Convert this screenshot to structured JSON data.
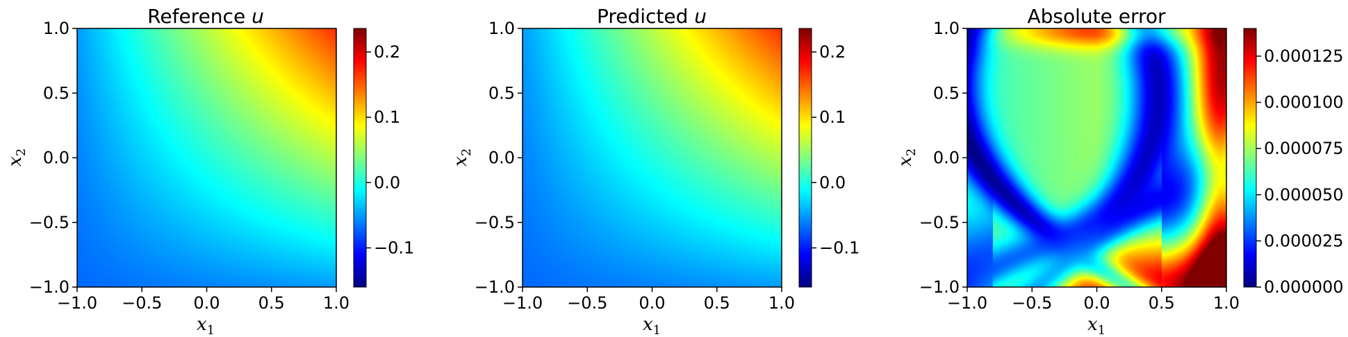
{
  "chart_data": [
    {
      "type": "heatmap",
      "title_text": "Reference ",
      "title_var": "u",
      "xlabel": "x1",
      "ylabel": "x2",
      "xlim": [
        -1.0,
        1.0
      ],
      "ylim": [
        -1.0,
        1.0
      ],
      "xticks": [
        "−1.0",
        "−0.5",
        "0.0",
        "0.5",
        "1.0"
      ],
      "yticks": [
        "−1.0",
        "−0.5",
        "0.0",
        "0.5",
        "1.0"
      ],
      "colormap": "jet",
      "field": "0.06*(x1+x2) + 0.05*x1*x2",
      "colorbar": {
        "range": [
          -0.16,
          0.236
        ],
        "ticks": [
          {
            "value": -0.1,
            "label": "−0.1"
          },
          {
            "value": 0.0,
            "label": "0.0"
          },
          {
            "value": 0.1,
            "label": "0.1"
          },
          {
            "value": 0.2,
            "label": "0.2"
          }
        ]
      }
    },
    {
      "type": "heatmap",
      "title_text": "Predicted ",
      "title_var": "u",
      "xlabel": "x1",
      "ylabel": "x2",
      "xlim": [
        -1.0,
        1.0
      ],
      "ylim": [
        -1.0,
        1.0
      ],
      "xticks": [
        "−1.0",
        "−0.5",
        "0.0",
        "0.5",
        "1.0"
      ],
      "yticks": [
        "−1.0",
        "−0.5",
        "0.0",
        "0.5",
        "1.0"
      ],
      "colormap": "jet",
      "field": "0.06*(x1+x2) + 0.05*x1*x2",
      "colorbar": {
        "range": [
          -0.16,
          0.236
        ],
        "ticks": [
          {
            "value": -0.1,
            "label": "−0.1"
          },
          {
            "value": 0.0,
            "label": "0.0"
          },
          {
            "value": 0.1,
            "label": "0.1"
          },
          {
            "value": 0.2,
            "label": "0.2"
          }
        ]
      }
    },
    {
      "type": "heatmap",
      "title_text": "Absolute error",
      "title_var": "",
      "xlabel": "x1",
      "ylabel": "x2",
      "xlim": [
        -1.0,
        1.0
      ],
      "ylim": [
        -1.0,
        1.0
      ],
      "xticks": [
        "−1.0",
        "−0.5",
        "0.0",
        "0.5",
        "1.0"
      ],
      "yticks": [
        "−1.0",
        "−0.5",
        "0.0",
        "0.5",
        "1.0"
      ],
      "colormap": "jet",
      "field": "abs(error)",
      "colorbar": {
        "range": [
          0.0,
          0.00014
        ],
        "ticks": [
          {
            "value": 0.0,
            "label": "0.000000"
          },
          {
            "value": 2.5e-05,
            "label": "0.000025"
          },
          {
            "value": 5e-05,
            "label": "0.000050"
          },
          {
            "value": 7.5e-05,
            "label": "0.000075"
          },
          {
            "value": 0.0001,
            "label": "0.000100"
          },
          {
            "value": 0.000125,
            "label": "0.000125"
          }
        ]
      }
    }
  ]
}
